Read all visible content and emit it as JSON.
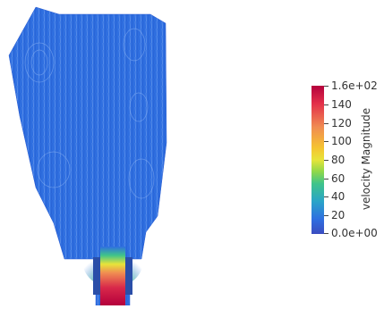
{
  "colorbar": {
    "title": "velocity Magnitude",
    "ticks": [
      "1.6e+02",
      "140",
      "120",
      "100",
      "80",
      "60",
      "40",
      "20",
      "0.0e+00"
    ],
    "range": [
      0,
      160
    ],
    "colormap": [
      "#3b4cc0",
      "#2aa4c8",
      "#3fc48a",
      "#e7e43a",
      "#f5c431",
      "#f08c52",
      "#b4003c"
    ]
  },
  "domain_colors": {
    "background_flow": "#2f6fe0",
    "high_velocity": "#c21a48",
    "nozzle_wall": "#2a4ea8"
  }
}
